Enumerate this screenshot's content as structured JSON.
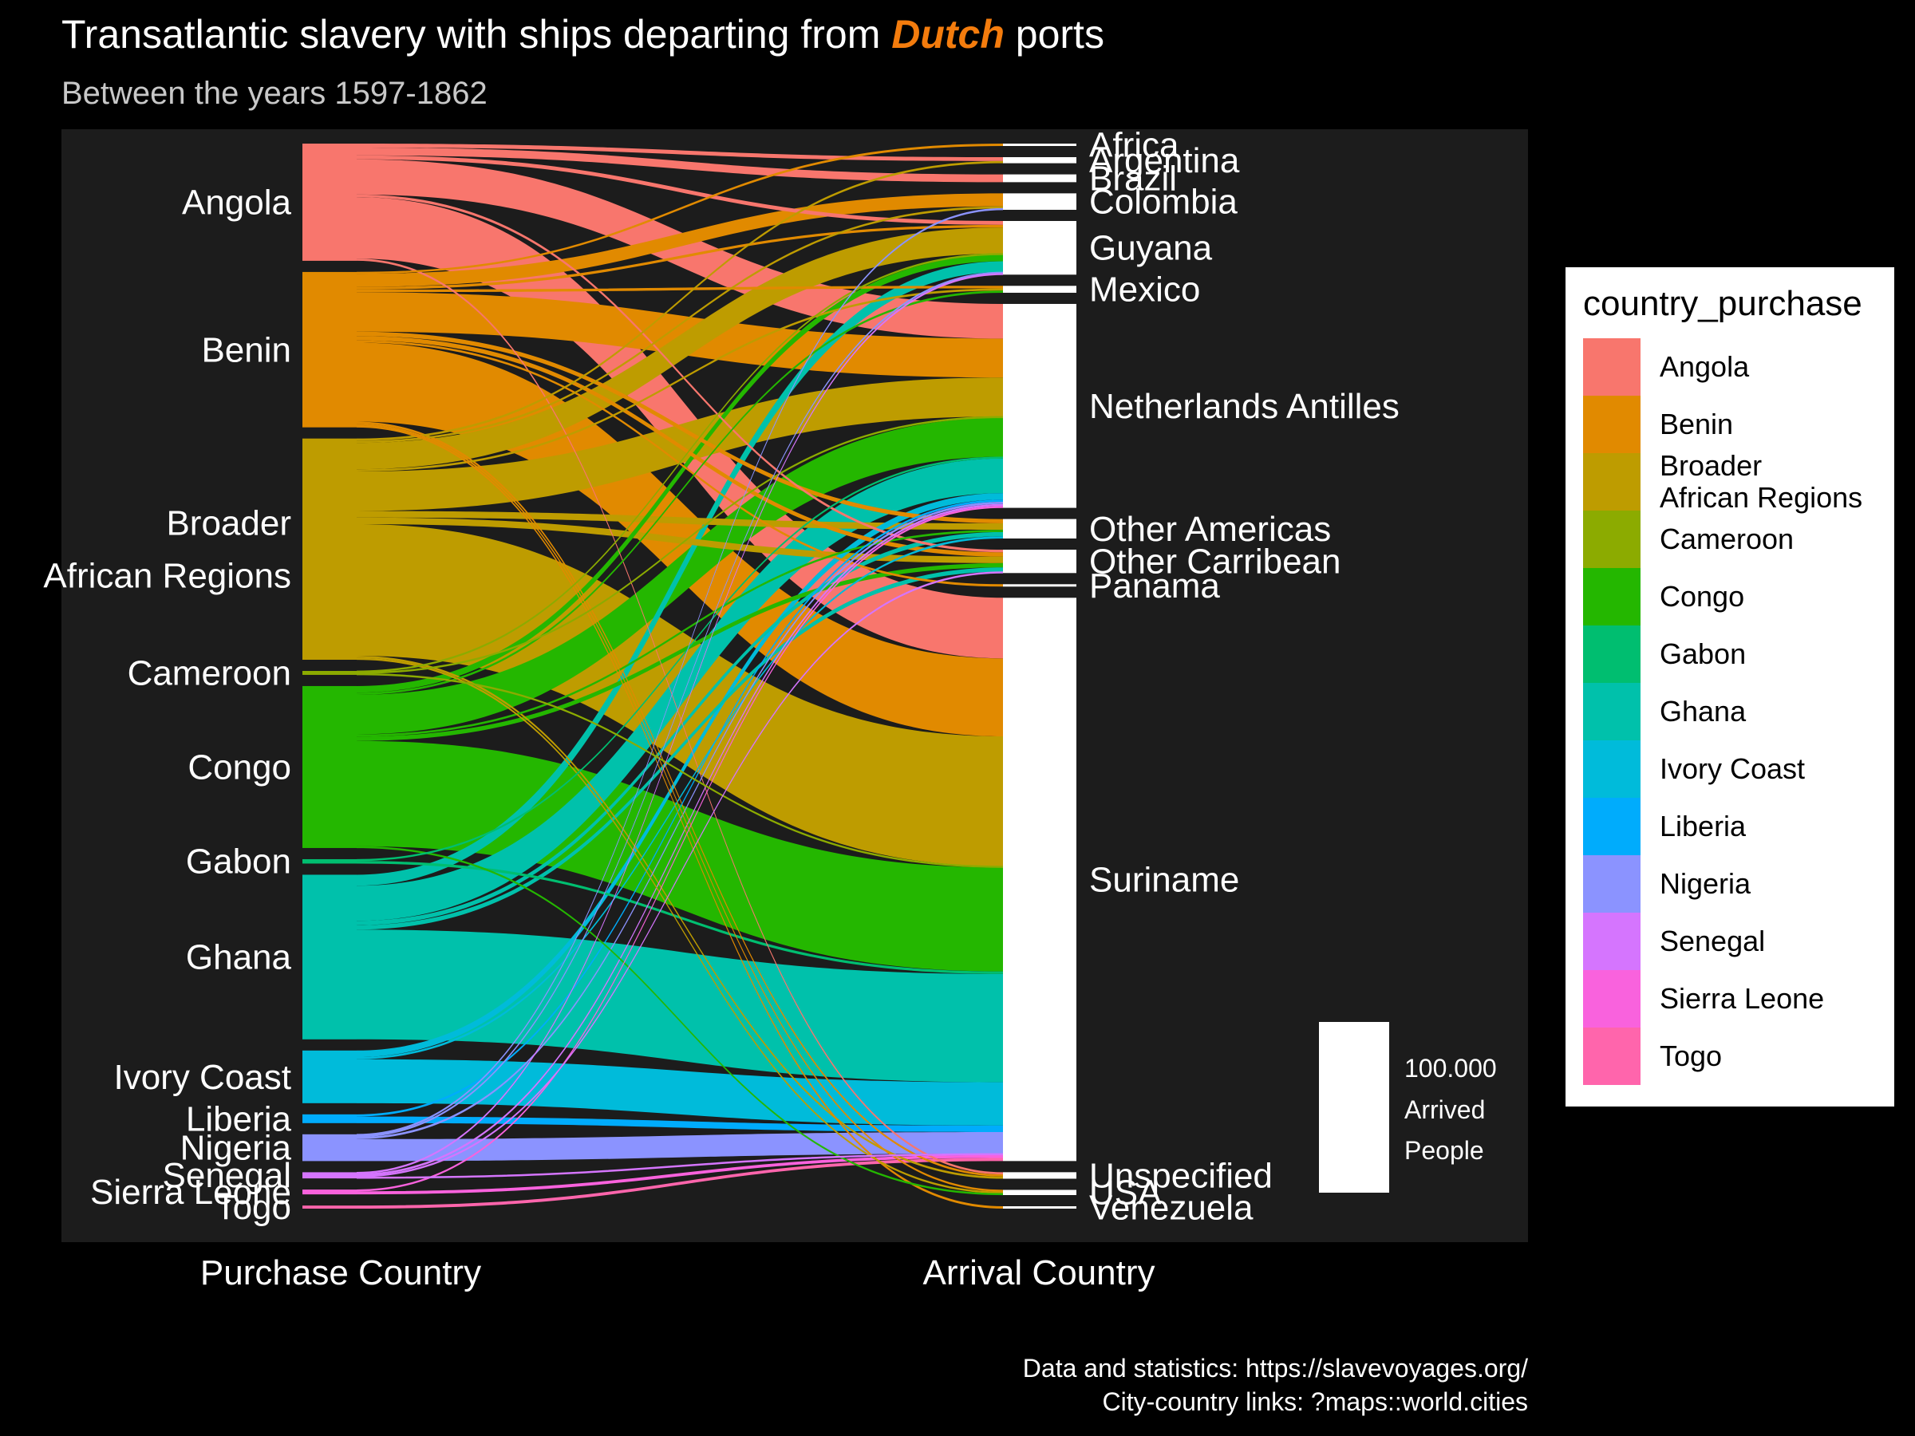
{
  "title": {
    "prefix": "Transatlantic slavery with ships departing from ",
    "highlight": "Dutch",
    "suffix": " ports"
  },
  "subtitle": "Between the years 1597-1862",
  "caption": {
    "line1": "Data and statistics: https://slavevoyages.org/",
    "line2": "City-country links: ?maps::world.cities"
  },
  "colors": {
    "background": "#000000",
    "panel": "#1c1c1c",
    "highlight": "#f47c0d",
    "node": "#ffffff"
  },
  "chart_data": {
    "type": "alluvial",
    "x_axis_labels": [
      "Purchase Country",
      "Arrival Country"
    ],
    "legend": {
      "title": "country_purchase",
      "placement": "right",
      "entries": [
        {
          "name": "Angola",
          "lines": [
            "Angola"
          ],
          "color": "#F8766D"
        },
        {
          "name": "Benin",
          "lines": [
            "Benin"
          ],
          "color": "#E18A00"
        },
        {
          "name": "Broader African Regions",
          "lines": [
            "Broader",
            "African Regions"
          ],
          "color": "#BE9C00"
        },
        {
          "name": "Cameroon",
          "lines": [
            "Cameroon"
          ],
          "color": "#8CAB00"
        },
        {
          "name": "Congo",
          "lines": [
            "Congo"
          ],
          "color": "#24B700"
        },
        {
          "name": "Gabon",
          "lines": [
            "Gabon"
          ],
          "color": "#00BE70"
        },
        {
          "name": "Ghana",
          "lines": [
            "Ghana"
          ],
          "color": "#00C1AB"
        },
        {
          "name": "Ivory Coast",
          "lines": [
            "Ivory Coast"
          ],
          "color": "#00BBDA"
        },
        {
          "name": "Liberia",
          "lines": [
            "Liberia"
          ],
          "color": "#00ACFC"
        },
        {
          "name": "Nigeria",
          "lines": [
            "Nigeria"
          ],
          "color": "#8B93FF"
        },
        {
          "name": "Senegal",
          "lines": [
            "Senegal"
          ],
          "color": "#D575FE"
        },
        {
          "name": "Sierra Leone",
          "lines": [
            "Sierra Leone"
          ],
          "color": "#F962DD"
        },
        {
          "name": "Togo",
          "lines": [
            "Togo"
          ],
          "color": "#FF65AC"
        }
      ]
    },
    "scale_legend": {
      "value": "100.000",
      "unit_lines": [
        "Arrived",
        "People"
      ]
    },
    "purchase_nodes": [
      {
        "name": "Angola",
        "lines": [
          "Angola"
        ]
      },
      {
        "name": "Benin",
        "lines": [
          "Benin"
        ]
      },
      {
        "name": "Broader African Regions",
        "lines": [
          "Broader",
          "African Regions"
        ]
      },
      {
        "name": "Cameroon",
        "lines": [
          "Cameroon"
        ]
      },
      {
        "name": "Congo",
        "lines": [
          "Congo"
        ]
      },
      {
        "name": "Gabon",
        "lines": [
          "Gabon"
        ]
      },
      {
        "name": "Ghana",
        "lines": [
          "Ghana"
        ]
      },
      {
        "name": "Ivory Coast",
        "lines": [
          "Ivory Coast"
        ]
      },
      {
        "name": "Liberia",
        "lines": [
          "Liberia"
        ]
      },
      {
        "name": "Nigeria",
        "lines": [
          "Nigeria"
        ]
      },
      {
        "name": "Senegal",
        "lines": [
          "Senegal"
        ]
      },
      {
        "name": "Sierra Leone",
        "lines": [
          "Sierra Leone"
        ]
      },
      {
        "name": "Togo",
        "lines": [
          "Togo"
        ]
      }
    ],
    "arrival_nodes": [
      "Africa",
      "Argentina",
      "Brazil",
      "Colombia",
      "Guyana",
      "Mexico",
      "Netherlands Antilles",
      "Other Americas",
      "Other Carribean",
      "Panama",
      "Suriname",
      "Unspecified",
      "USA",
      "Venezuela"
    ],
    "flows": [
      {
        "from": "Angola",
        "to": "Argentina",
        "value": 900
      },
      {
        "from": "Angola",
        "to": "Brazil",
        "value": 1800
      },
      {
        "from": "Angola",
        "to": "Guyana",
        "value": 900
      },
      {
        "from": "Angola",
        "to": "Netherlands Antilles",
        "value": 8000
      },
      {
        "from": "Angola",
        "to": "Other Carribean",
        "value": 600
      },
      {
        "from": "Angola",
        "to": "Suriname",
        "value": 14000
      },
      {
        "from": "Angola",
        "to": "Unspecified",
        "value": 500
      },
      {
        "from": "Benin",
        "to": "Africa",
        "value": 400
      },
      {
        "from": "Benin",
        "to": "Colombia",
        "value": 3000
      },
      {
        "from": "Benin",
        "to": "Guyana",
        "value": 600
      },
      {
        "from": "Benin",
        "to": "Mexico",
        "value": 600
      },
      {
        "from": "Benin",
        "to": "Netherlands Antilles",
        "value": 9000
      },
      {
        "from": "Benin",
        "to": "Other Americas",
        "value": 1000
      },
      {
        "from": "Benin",
        "to": "Other Carribean",
        "value": 1000
      },
      {
        "from": "Benin",
        "to": "Panama",
        "value": 500
      },
      {
        "from": "Benin",
        "to": "Suriname",
        "value": 18000
      },
      {
        "from": "Benin",
        "to": "Unspecified",
        "value": 500
      },
      {
        "from": "Benin",
        "to": "USA",
        "value": 400
      },
      {
        "from": "Benin",
        "to": "Venezuela",
        "value": 400
      },
      {
        "from": "Broader African Regions",
        "to": "Argentina",
        "value": 500
      },
      {
        "from": "Broader African Regions",
        "to": "Colombia",
        "value": 500
      },
      {
        "from": "Broader African Regions",
        "to": "Guyana",
        "value": 6000
      },
      {
        "from": "Broader African Regions",
        "to": "Mexico",
        "value": 500
      },
      {
        "from": "Broader African Regions",
        "to": "Netherlands Antilles",
        "value": 9000
      },
      {
        "from": "Broader African Regions",
        "to": "Other Americas",
        "value": 1500
      },
      {
        "from": "Broader African Regions",
        "to": "Other Carribean",
        "value": 1500
      },
      {
        "from": "Broader African Regions",
        "to": "Suriname",
        "value": 30000
      },
      {
        "from": "Broader African Regions",
        "to": "Unspecified",
        "value": 500
      },
      {
        "from": "Broader African Regions",
        "to": "USA",
        "value": 400
      },
      {
        "from": "Cameroon",
        "to": "Guyana",
        "value": 300
      },
      {
        "from": "Cameroon",
        "to": "Netherlands Antilles",
        "value": 300
      },
      {
        "from": "Cameroon",
        "to": "Suriname",
        "value": 300
      },
      {
        "from": "Congo",
        "to": "Guyana",
        "value": 1500
      },
      {
        "from": "Congo",
        "to": "Mexico",
        "value": 500
      },
      {
        "from": "Congo",
        "to": "Netherlands Antilles",
        "value": 9000
      },
      {
        "from": "Congo",
        "to": "Other Americas",
        "value": 500
      },
      {
        "from": "Congo",
        "to": "Other Carribean",
        "value": 1000
      },
      {
        "from": "Congo",
        "to": "Suriname",
        "value": 24000
      },
      {
        "from": "Congo",
        "to": "USA",
        "value": 400
      },
      {
        "from": "Gabon",
        "to": "Netherlands Antilles",
        "value": 400
      },
      {
        "from": "Gabon",
        "to": "Suriname",
        "value": 600
      },
      {
        "from": "Ghana",
        "to": "Guyana",
        "value": 2500
      },
      {
        "from": "Ghana",
        "to": "Netherlands Antilles",
        "value": 8000
      },
      {
        "from": "Ghana",
        "to": "Other Americas",
        "value": 1000
      },
      {
        "from": "Ghana",
        "to": "Other Carribean",
        "value": 1000
      },
      {
        "from": "Ghana",
        "to": "Suriname",
        "value": 25000
      },
      {
        "from": "Ivory Coast",
        "to": "Netherlands Antilles",
        "value": 1500
      },
      {
        "from": "Ivory Coast",
        "to": "Other Americas",
        "value": 500
      },
      {
        "from": "Ivory Coast",
        "to": "Suriname",
        "value": 10000
      },
      {
        "from": "Liberia",
        "to": "Netherlands Antilles",
        "value": 500
      },
      {
        "from": "Liberia",
        "to": "Suriname",
        "value": 1500
      },
      {
        "from": "Nigeria",
        "to": "Colombia",
        "value": 300
      },
      {
        "from": "Nigeria",
        "to": "Guyana",
        "value": 300
      },
      {
        "from": "Nigeria",
        "to": "Netherlands Antilles",
        "value": 500
      },
      {
        "from": "Nigeria",
        "to": "Suriname",
        "value": 5000
      },
      {
        "from": "Senegal",
        "to": "Guyana",
        "value": 300
      },
      {
        "from": "Senegal",
        "to": "Netherlands Antilles",
        "value": 500
      },
      {
        "from": "Senegal",
        "to": "Other Carribean",
        "value": 300
      },
      {
        "from": "Senegal",
        "to": "Suriname",
        "value": 300
      },
      {
        "from": "Sierra Leone",
        "to": "Netherlands Antilles",
        "value": 400
      },
      {
        "from": "Sierra Leone",
        "to": "Suriname",
        "value": 700
      },
      {
        "from": "Togo",
        "to": "Suriname",
        "value": 700
      }
    ]
  }
}
